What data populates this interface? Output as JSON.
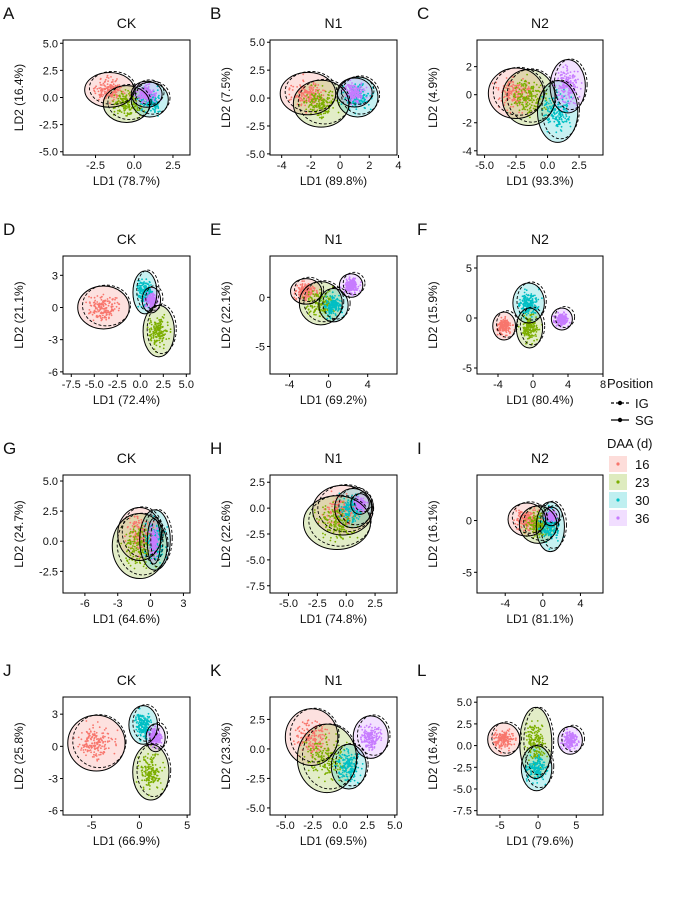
{
  "figure": {
    "legend": {
      "position_title": "Position",
      "position_items": [
        "IG",
        "SG"
      ],
      "daa_title": "DAA (d)",
      "daa_items": [
        "16",
        "23",
        "30",
        "36"
      ],
      "colors": [
        "#F8766D",
        "#7CAE00",
        "#00BFC4",
        "#C77CFF"
      ]
    }
  },
  "chart_data": [
    {
      "label": "A",
      "title": "CK",
      "type": "scatter",
      "xlabel": "LD1 (78.7%)",
      "ylabel": "LD2 (16.4%)",
      "xlim": [
        -4.6,
        3.6
      ],
      "ylim": [
        -5.3,
        5.3
      ],
      "xticks": [
        -2.5,
        0,
        2.5
      ],
      "xtick_labels": [
        "-2.5",
        "0.0",
        "2.5"
      ],
      "yticks": [
        -5,
        -2.5,
        0,
        2.5,
        5
      ],
      "ytick_labels": [
        "-5.0",
        "-2.5",
        "0.0",
        "2.5",
        "5.0"
      ],
      "groups": [
        {
          "daa": "16",
          "center": [
            -1.6,
            0.7
          ],
          "radius": [
            1.6,
            1.6
          ]
        },
        {
          "daa": "23",
          "center": [
            -0.5,
            -0.6
          ],
          "radius": [
            1.5,
            1.7
          ]
        },
        {
          "daa": "30",
          "center": [
            1.0,
            -0.2
          ],
          "radius": [
            1.2,
            1.6
          ]
        },
        {
          "daa": "36",
          "center": [
            0.8,
            0.3
          ],
          "radius": [
            1.0,
            1.2
          ]
        }
      ]
    },
    {
      "label": "B",
      "title": "N1",
      "type": "scatter",
      "xlabel": "LD1 (89.8%)",
      "ylabel": "LD2 (7.5%)",
      "xlim": [
        -4.8,
        3.9
      ],
      "ylim": [
        -5.1,
        5.2
      ],
      "xticks": [
        -4,
        -2,
        0,
        2,
        4
      ],
      "xtick_labels": [
        "-4",
        "-2",
        "0",
        "2",
        "4"
      ],
      "yticks": [
        -5,
        -2.5,
        0,
        2.5,
        5
      ],
      "ytick_labels": [
        "-5.0",
        "-2.5",
        "0.0",
        "2.5",
        "5.0"
      ],
      "groups": [
        {
          "daa": "16",
          "center": [
            -2.2,
            0.4
          ],
          "radius": [
            1.9,
            1.9
          ]
        },
        {
          "daa": "23",
          "center": [
            -1.3,
            -0.5
          ],
          "radius": [
            1.9,
            2.1
          ]
        },
        {
          "daa": "30",
          "center": [
            1.2,
            0.1
          ],
          "radius": [
            1.4,
            1.8
          ]
        },
        {
          "daa": "36",
          "center": [
            1.0,
            0.5
          ],
          "radius": [
            1.2,
            1.3
          ]
        }
      ]
    },
    {
      "label": "C",
      "title": "N2",
      "type": "scatter",
      "xlabel": "LD1 (93.3%)",
      "ylabel": "LD2 (4.9%)",
      "xlim": [
        -5.6,
        4.4
      ],
      "ylim": [
        -4.3,
        3.9
      ],
      "xticks": [
        -5,
        -2.5,
        0,
        2.5
      ],
      "xtick_labels": [
        "-5.0",
        "-2.5",
        "0.0",
        "2.5"
      ],
      "yticks": [
        -4,
        -2,
        0,
        2
      ],
      "ytick_labels": [
        "-4",
        "-2",
        "0",
        "2"
      ],
      "groups": [
        {
          "daa": "16",
          "center": [
            -2.5,
            0.1
          ],
          "radius": [
            2.2,
            1.8
          ]
        },
        {
          "daa": "23",
          "center": [
            -1.5,
            -0.2
          ],
          "radius": [
            2.1,
            2.0
          ]
        },
        {
          "daa": "30",
          "center": [
            0.8,
            -1.2
          ],
          "radius": [
            1.6,
            2.2
          ]
        },
        {
          "daa": "36",
          "center": [
            1.6,
            0.6
          ],
          "radius": [
            1.4,
            1.9
          ]
        }
      ]
    },
    {
      "label": "D",
      "title": "CK",
      "type": "scatter",
      "xlabel": "LD1 (72.4%)",
      "ylabel": "LD2 (21.1%)",
      "xlim": [
        -8.4,
        5.4
      ],
      "ylim": [
        -6.2,
        4.8
      ],
      "xticks": [
        -7.5,
        -5,
        -2.5,
        0,
        2.5,
        5
      ],
      "xtick_labels": [
        "-7.5",
        "-5.0",
        "-2.5",
        "0.0",
        "2.5",
        "5.0"
      ],
      "yticks": [
        -6,
        -3,
        0,
        3
      ],
      "ytick_labels": [
        "-6",
        "-3",
        "0",
        "3"
      ],
      "groups": [
        {
          "daa": "16",
          "center": [
            -4.0,
            0.0
          ],
          "radius": [
            2.8,
            2.0
          ]
        },
        {
          "daa": "23",
          "center": [
            2.0,
            -2.2
          ],
          "radius": [
            1.7,
            2.4
          ]
        },
        {
          "daa": "30",
          "center": [
            0.5,
            1.4
          ],
          "radius": [
            1.3,
            2.0
          ]
        },
        {
          "daa": "36",
          "center": [
            1.2,
            0.7
          ],
          "radius": [
            1.0,
            1.2
          ]
        }
      ]
    },
    {
      "label": "E",
      "title": "N1",
      "type": "scatter",
      "xlabel": "LD1 (69.2%)",
      "ylabel": "LD2 (22.1%)",
      "xlim": [
        -6.0,
        7.0
      ],
      "ylim": [
        -7.8,
        4.2
      ],
      "xticks": [
        -4,
        0,
        4
      ],
      "xtick_labels": [
        "-4",
        "0",
        "4"
      ],
      "yticks": [
        -5,
        0
      ],
      "ytick_labels": [
        "-5",
        "0"
      ],
      "groups": [
        {
          "daa": "16",
          "center": [
            -2.3,
            0.6
          ],
          "radius": [
            1.6,
            1.3
          ]
        },
        {
          "daa": "23",
          "center": [
            -0.8,
            -0.6
          ],
          "radius": [
            2.2,
            2.2
          ]
        },
        {
          "daa": "30",
          "center": [
            0.5,
            -0.8
          ],
          "radius": [
            1.5,
            1.7
          ]
        },
        {
          "daa": "36",
          "center": [
            2.3,
            1.2
          ],
          "radius": [
            1.2,
            1.2
          ]
        }
      ]
    },
    {
      "label": "F",
      "title": "N2",
      "type": "scatter",
      "xlabel": "LD1 (80.4%)",
      "ylabel": "LD2 (15.9%)",
      "xlim": [
        -6.4,
        8.0
      ],
      "ylim": [
        -5.6,
        6.2
      ],
      "xticks": [
        -4,
        0,
        4,
        8
      ],
      "xtick_labels": [
        "-4",
        "0",
        "4",
        "8"
      ],
      "yticks": [
        -5,
        0,
        5
      ],
      "ytick_labels": [
        "-5",
        "0",
        "5"
      ],
      "groups": [
        {
          "daa": "16",
          "center": [
            -3.3,
            -0.8
          ],
          "radius": [
            1.3,
            1.4
          ]
        },
        {
          "daa": "23",
          "center": [
            -0.4,
            -1.0
          ],
          "radius": [
            1.5,
            2.0
          ]
        },
        {
          "daa": "30",
          "center": [
            -0.5,
            1.5
          ],
          "radius": [
            1.8,
            2.0
          ]
        },
        {
          "daa": "36",
          "center": [
            3.3,
            -0.1
          ],
          "radius": [
            1.2,
            1.1
          ]
        }
      ]
    },
    {
      "label": "G",
      "title": "CK",
      "type": "scatter",
      "xlabel": "LD1 (64.6%)",
      "ylabel": "LD2 (24.7%)",
      "xlim": [
        -8.0,
        3.6
      ],
      "ylim": [
        -4.3,
        5.5
      ],
      "xticks": [
        -6,
        -3,
        0,
        3
      ],
      "xtick_labels": [
        "-6",
        "-3",
        "0",
        "3"
      ],
      "yticks": [
        -2.5,
        0,
        2.5,
        5
      ],
      "ytick_labels": [
        "-2.5",
        "0.0",
        "2.5",
        "5.0"
      ],
      "groups": [
        {
          "daa": "16",
          "center": [
            -1.0,
            0.6
          ],
          "radius": [
            2.0,
            2.2
          ]
        },
        {
          "daa": "23",
          "center": [
            -1.0,
            -0.4
          ],
          "radius": [
            2.5,
            2.7
          ]
        },
        {
          "daa": "30",
          "center": [
            0.4,
            0.1
          ],
          "radius": [
            1.4,
            2.5
          ]
        },
        {
          "daa": "36",
          "center": [
            0.3,
            0.0
          ],
          "radius": [
            0.6,
            1.9
          ]
        }
      ]
    },
    {
      "label": "H",
      "title": "N1",
      "type": "scatter",
      "xlabel": "LD1 (74.8%)",
      "ylabel": "LD2 (22.6%)",
      "xlim": [
        -6.6,
        4.4
      ],
      "ylim": [
        -8.2,
        3.2
      ],
      "xticks": [
        -5,
        -2.5,
        0,
        2.5
      ],
      "xtick_labels": [
        "-5.0",
        "-2.5",
        "0.0",
        "2.5"
      ],
      "yticks": [
        -7.5,
        -5,
        -2.5,
        0,
        2.5
      ],
      "ytick_labels": [
        "-7.5",
        "-5.0",
        "-2.5",
        "0.0",
        "2.5"
      ],
      "groups": [
        {
          "daa": "16",
          "center": [
            -0.3,
            -0.2
          ],
          "radius": [
            2.6,
            2.4
          ]
        },
        {
          "daa": "23",
          "center": [
            -0.8,
            -1.4
          ],
          "radius": [
            2.9,
            2.6
          ]
        },
        {
          "daa": "30",
          "center": [
            0.6,
            0.0
          ],
          "radius": [
            1.6,
            1.9
          ]
        },
        {
          "daa": "36",
          "center": [
            1.2,
            0.4
          ],
          "radius": [
            0.8,
            1.0
          ]
        }
      ]
    },
    {
      "label": "I",
      "title": "N2",
      "type": "scatter",
      "xlabel": "LD1 (81.1%)",
      "ylabel": "LD2 (16.1%)",
      "xlim": [
        -7.0,
        6.4
      ],
      "ylim": [
        -7.0,
        4.4
      ],
      "xticks": [
        -4,
        0,
        4
      ],
      "xtick_labels": [
        "-4",
        "0",
        "4"
      ],
      "yticks": [
        -5,
        0
      ],
      "ytick_labels": [
        "-5",
        "0"
      ],
      "groups": [
        {
          "daa": "16",
          "center": [
            -1.7,
            0.1
          ],
          "radius": [
            2.0,
            1.6
          ]
        },
        {
          "daa": "23",
          "center": [
            -0.5,
            -0.4
          ],
          "radius": [
            2.0,
            1.8
          ]
        },
        {
          "daa": "30",
          "center": [
            0.8,
            -0.6
          ],
          "radius": [
            1.5,
            2.4
          ]
        },
        {
          "daa": "36",
          "center": [
            0.9,
            0.4
          ],
          "radius": [
            0.9,
            0.9
          ]
        }
      ]
    },
    {
      "label": "J",
      "title": "CK",
      "type": "scatter",
      "xlabel": "LD1 (66.9%)",
      "ylabel": "LD2 (25.8%)",
      "xlim": [
        -8.0,
        5.3
      ],
      "ylim": [
        -6.4,
        4.6
      ],
      "xticks": [
        -5,
        0,
        5
      ],
      "xtick_labels": [
        "-5",
        "0",
        "5"
      ],
      "yticks": [
        -6,
        -3,
        0,
        3
      ],
      "ytick_labels": [
        "-6",
        "-3",
        "0",
        "3"
      ],
      "groups": [
        {
          "daa": "16",
          "center": [
            -4.5,
            0.3
          ],
          "radius": [
            3.0,
            2.6
          ]
        },
        {
          "daa": "23",
          "center": [
            1.2,
            -2.4
          ],
          "radius": [
            1.9,
            2.6
          ]
        },
        {
          "daa": "30",
          "center": [
            0.4,
            2.0
          ],
          "radius": [
            1.5,
            1.8
          ]
        },
        {
          "daa": "36",
          "center": [
            1.7,
            0.8
          ],
          "radius": [
            1.0,
            1.3
          ]
        }
      ]
    },
    {
      "label": "K",
      "title": "N1",
      "type": "scatter",
      "xlabel": "LD1 (69.5%)",
      "ylabel": "LD2 (23.3%)",
      "xlim": [
        -6.4,
        5.2
      ],
      "ylim": [
        -5.6,
        4.4
      ],
      "xticks": [
        -5,
        -2.5,
        0,
        2.5,
        5
      ],
      "xtick_labels": [
        "-5.0",
        "-2.5",
        "0.0",
        "2.5",
        "5.0"
      ],
      "yticks": [
        -5,
        -2.5,
        0,
        2.5
      ],
      "ytick_labels": [
        "-5.0",
        "-2.5",
        "0.0",
        "2.5"
      ],
      "groups": [
        {
          "daa": "16",
          "center": [
            -2.6,
            1.0
          ],
          "radius": [
            2.4,
            2.4
          ]
        },
        {
          "daa": "23",
          "center": [
            -1.2,
            -0.8
          ],
          "radius": [
            2.7,
            2.9
          ]
        },
        {
          "daa": "30",
          "center": [
            0.8,
            -1.5
          ],
          "radius": [
            1.6,
            1.9
          ]
        },
        {
          "daa": "36",
          "center": [
            2.8,
            1.0
          ],
          "radius": [
            1.6,
            1.8
          ]
        }
      ]
    },
    {
      "label": "L",
      "title": "N2",
      "type": "scatter",
      "xlabel": "LD1 (79.6%)",
      "ylabel": "LD2 (16.4%)",
      "xlim": [
        -8.0,
        8.5
      ],
      "ylim": [
        -8.0,
        5.6
      ],
      "xticks": [
        -5,
        0,
        5
      ],
      "xtick_labels": [
        "-5",
        "0",
        "5"
      ],
      "yticks": [
        -7.5,
        -5,
        -2.5,
        0,
        2.5,
        5
      ],
      "ytick_labels": [
        "-7.5",
        "-5.0",
        "-2.5",
        "0.0",
        "2.5",
        "5.0"
      ],
      "groups": [
        {
          "daa": "16",
          "center": [
            -4.5,
            0.7
          ],
          "radius": [
            2.1,
            1.9
          ]
        },
        {
          "daa": "23",
          "center": [
            -0.3,
            0.3
          ],
          "radius": [
            2.1,
            4.1
          ]
        },
        {
          "daa": "30",
          "center": [
            -0.2,
            -2.6
          ],
          "radius": [
            2.0,
            2.6
          ]
        },
        {
          "daa": "36",
          "center": [
            4.2,
            0.6
          ],
          "radius": [
            1.6,
            1.6
          ]
        }
      ]
    }
  ]
}
